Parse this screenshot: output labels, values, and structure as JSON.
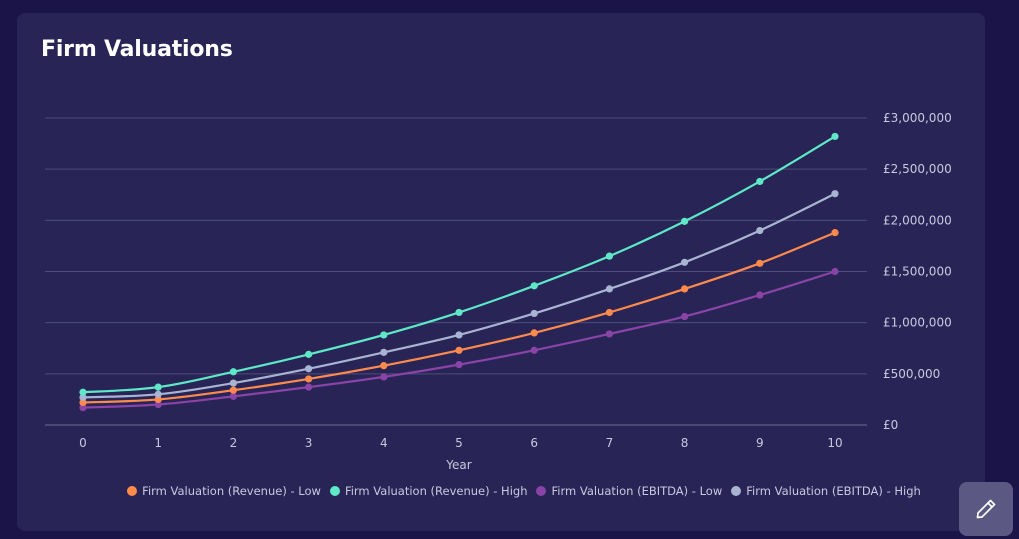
{
  "card": {
    "title": "Firm Valuations"
  },
  "chart_data": {
    "type": "line",
    "title": "",
    "xlabel": "Year",
    "ylabel": "",
    "x": [
      0,
      1,
      2,
      3,
      4,
      5,
      6,
      7,
      8,
      9,
      10
    ],
    "xlim": [
      0,
      10
    ],
    "ylim": [
      0,
      3000000
    ],
    "y_ticks": [
      0,
      500000,
      1000000,
      1500000,
      2000000,
      2500000,
      3000000
    ],
    "y_tick_labels": [
      "£0",
      "£500,000",
      "£1,000,000",
      "£1,500,000",
      "£2,000,000",
      "£2,500,000",
      "£3,000,000"
    ],
    "y_axis_position": "right",
    "grid": true,
    "legend_position": "bottom",
    "series": [
      {
        "name": "Firm Valuation (Revenue) - Low",
        "color": "#ff8a4c",
        "values": [
          220000,
          250000,
          340000,
          450000,
          580000,
          730000,
          900000,
          1100000,
          1330000,
          1580000,
          1880000
        ]
      },
      {
        "name": "Firm Valuation (Revenue) - High",
        "color": "#5ee8c8",
        "values": [
          320000,
          370000,
          520000,
          690000,
          880000,
          1100000,
          1360000,
          1650000,
          1990000,
          2380000,
          2820000
        ]
      },
      {
        "name": "Firm Valuation (EBITDA) - Low",
        "color": "#8a43a6",
        "values": [
          170000,
          200000,
          280000,
          370000,
          470000,
          590000,
          730000,
          890000,
          1060000,
          1270000,
          1500000
        ]
      },
      {
        "name": "Firm Valuation (EBITDA) - High",
        "color": "#a9b4d3",
        "values": [
          270000,
          300000,
          410000,
          550000,
          710000,
          880000,
          1090000,
          1330000,
          1590000,
          1900000,
          2260000
        ]
      }
    ]
  },
  "edit_button": {
    "icon": "pencil-icon"
  }
}
